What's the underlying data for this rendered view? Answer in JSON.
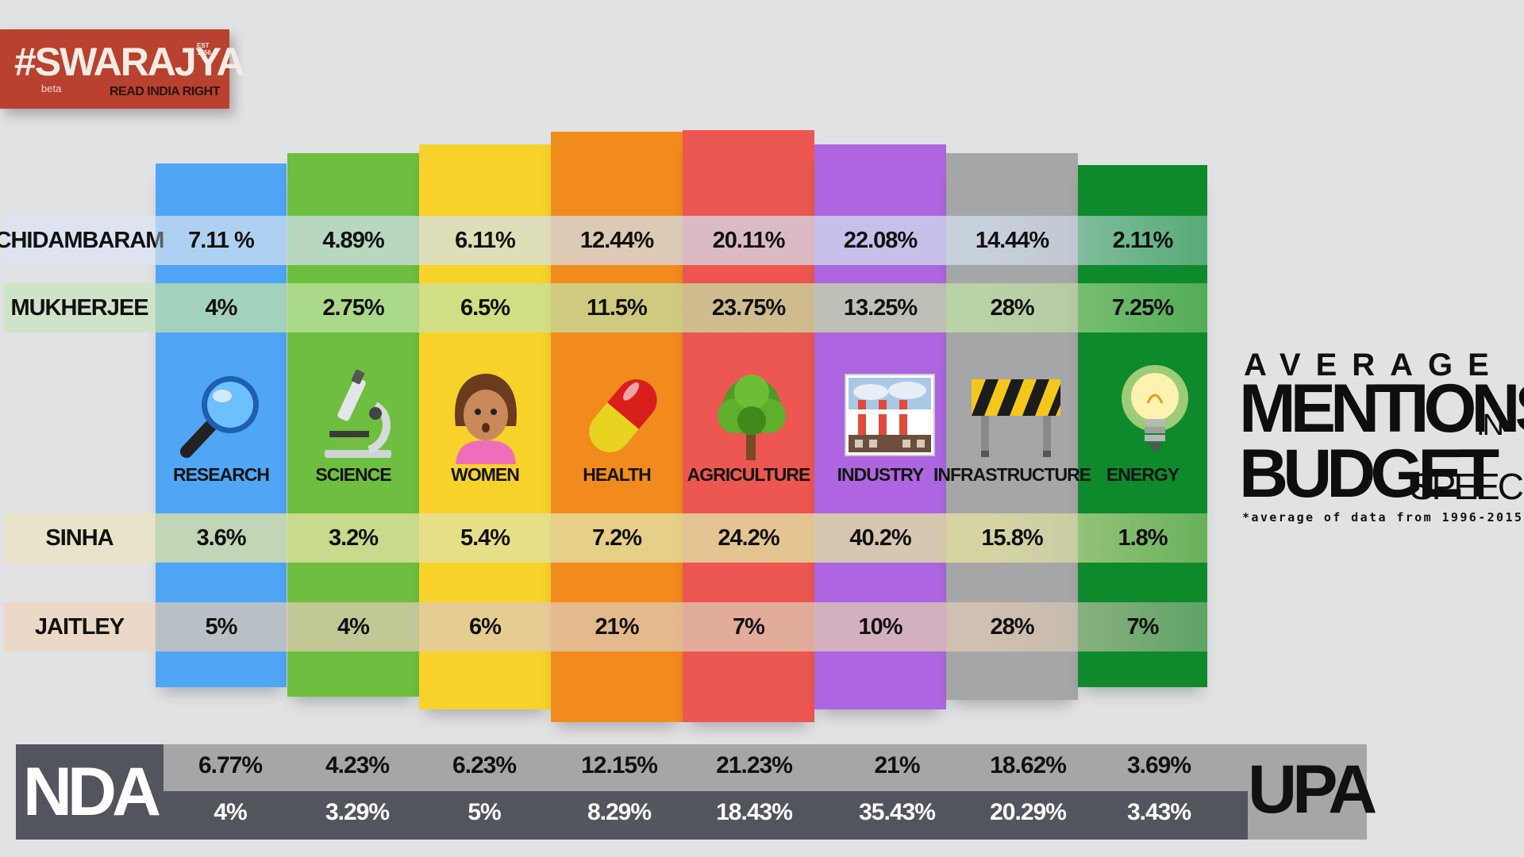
{
  "logo": {
    "brand": "#SWARAJYA",
    "est_line1": "EST",
    "est_line2": "1956",
    "beta": "beta",
    "tagline": "READ INDIA RIGHT"
  },
  "title": {
    "line1": "AVERAGE",
    "line2": "MENTIONS",
    "line2_suffix": "IN",
    "line3": "BUDGET",
    "line3_suffix": "SPEECH",
    "note": "*average of data from 1996-2015"
  },
  "chart_data": {
    "type": "table",
    "unit": "%",
    "categories": [
      "RESEARCH",
      "SCIENCE",
      "WOMEN",
      "HEALTH",
      "AGRICULTURE",
      "INDUSTRY",
      "INFRASTRUCTURE",
      "ENERGY"
    ],
    "category_colors": [
      "#4ea6f5",
      "#6ebf3f",
      "#f7d22b",
      "#f28b1d",
      "#ec5751",
      "#ad66e0",
      "#a5a6a7",
      "#0e8a2d"
    ],
    "category_icons": [
      "magnifying-glass-icon",
      "microscope-icon",
      "woman-icon",
      "pill-icon",
      "tree-icon",
      "factory-icon",
      "construction-barrier-icon",
      "light-bulb-icon"
    ],
    "series": [
      {
        "name": "CHIDAMBARAM",
        "display": [
          "7.11 %",
          "4.89%",
          "6.11%",
          "12.44%",
          "20.11%",
          "22.08%",
          "14.44%",
          "2.11%"
        ],
        "values": [
          7.11,
          4.89,
          6.11,
          12.44,
          20.11,
          22.08,
          14.44,
          2.11
        ]
      },
      {
        "name": "MUKHERJEE",
        "display": [
          "4%",
          "2.75%",
          "6.5%",
          "11.5%",
          "23.75%",
          "13.25%",
          "28%",
          "7.25%"
        ],
        "values": [
          4,
          2.75,
          6.5,
          11.5,
          23.75,
          13.25,
          28,
          7.25
        ]
      },
      {
        "name": "SINHA",
        "display": [
          "3.6%",
          "3.2%",
          "5.4%",
          "7.2%",
          "24.2%",
          "40.2%",
          "15.8%",
          "1.8%"
        ],
        "values": [
          3.6,
          3.2,
          5.4,
          7.2,
          24.2,
          40.2,
          15.8,
          1.8
        ]
      },
      {
        "name": "JAITLEY",
        "display": [
          "5%",
          "4%",
          "6%",
          "21%",
          "7%",
          "10%",
          "28%",
          "7%"
        ],
        "values": [
          5,
          4,
          6,
          21,
          7,
          10,
          28,
          7
        ]
      }
    ],
    "groups": [
      {
        "name": "NDA",
        "display": [
          "6.77%",
          "4.23%",
          "6.23%",
          "12.15%",
          "21.23%",
          "21%",
          "18.62%",
          "3.69%"
        ],
        "values": [
          6.77,
          4.23,
          6.23,
          12.15,
          21.23,
          21,
          18.62,
          3.69
        ]
      },
      {
        "name": "UPA",
        "display": [
          "4%",
          "3.29%",
          "5%",
          "8.29%",
          "18.43%",
          "35.43%",
          "20.29%",
          "3.43%"
        ],
        "values": [
          4,
          3.29,
          5,
          8.29,
          18.43,
          35.43,
          20.29,
          3.43
        ]
      }
    ]
  }
}
